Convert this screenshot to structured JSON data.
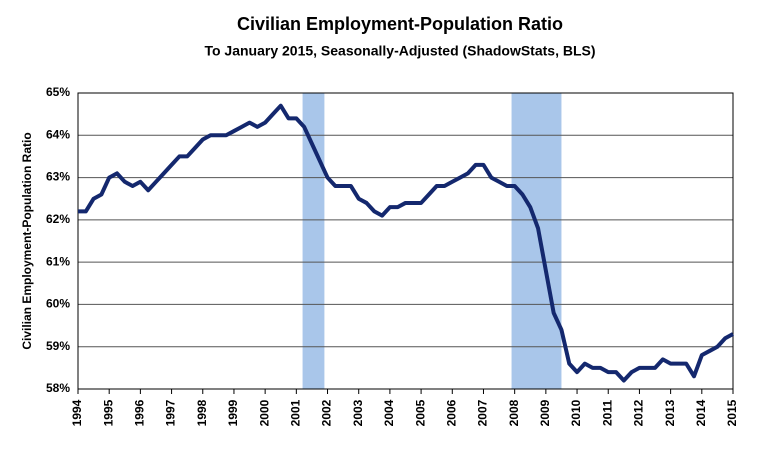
{
  "chart_data": {
    "type": "line",
    "title": "Civilian Employment-Population  Ratio",
    "subtitle": "To January 2015, Seasonally-Adjusted (ShadowStats, BLS)",
    "y_label": "Civilian Employment-Population  Ratio",
    "color": "#14286e",
    "shade_color": "#a9c6ea",
    "grid": true,
    "xlim": [
      1994,
      2015
    ],
    "xticks": [
      1994,
      1995,
      1996,
      1997,
      1998,
      1999,
      2000,
      2001,
      2002,
      2003,
      2004,
      2005,
      2006,
      2007,
      2008,
      2009,
      2010,
      2011,
      2012,
      2013,
      2014,
      2015
    ],
    "ylim": [
      58,
      65
    ],
    "yticks": [
      {
        "value": 58,
        "label": "58%"
      },
      {
        "value": 59,
        "label": "59%"
      },
      {
        "value": 60,
        "label": "60%"
      },
      {
        "value": 61,
        "label": "61%"
      },
      {
        "value": 62,
        "label": "62%"
      },
      {
        "value": 63,
        "label": "63%"
      },
      {
        "value": 64,
        "label": "64%"
      },
      {
        "value": 65,
        "label": "65%"
      }
    ],
    "shaded_regions": [
      [
        2001.2,
        2001.9
      ],
      [
        2007.9,
        2009.5
      ]
    ],
    "x": [
      1994.0,
      1994.25,
      1994.5,
      1994.75,
      1995.0,
      1995.25,
      1995.5,
      1995.75,
      1996.0,
      1996.25,
      1996.5,
      1996.75,
      1997.0,
      1997.25,
      1997.5,
      1997.75,
      1998.0,
      1998.25,
      1998.5,
      1998.75,
      1999.0,
      1999.25,
      1999.5,
      1999.75,
      2000.0,
      2000.25,
      2000.5,
      2000.75,
      2001.0,
      2001.25,
      2001.5,
      2001.75,
      2002.0,
      2002.25,
      2002.5,
      2002.75,
      2003.0,
      2003.25,
      2003.5,
      2003.75,
      2004.0,
      2004.25,
      2004.5,
      2004.75,
      2005.0,
      2005.25,
      2005.5,
      2005.75,
      2006.0,
      2006.25,
      2006.5,
      2006.75,
      2007.0,
      2007.25,
      2007.5,
      2007.75,
      2008.0,
      2008.25,
      2008.5,
      2008.75,
      2009.0,
      2009.25,
      2009.5,
      2009.75,
      2010.0,
      2010.25,
      2010.5,
      2010.75,
      2011.0,
      2011.25,
      2011.5,
      2011.75,
      2012.0,
      2012.25,
      2012.5,
      2012.75,
      2013.0,
      2013.25,
      2013.5,
      2013.75,
      2014.0,
      2014.25,
      2014.5,
      2014.75,
      2015.0
    ],
    "values": [
      62.2,
      62.2,
      62.5,
      62.6,
      63.0,
      63.1,
      62.9,
      62.8,
      62.9,
      62.7,
      62.9,
      63.1,
      63.3,
      63.5,
      63.5,
      63.7,
      63.9,
      64.0,
      64.0,
      64.0,
      64.1,
      64.2,
      64.3,
      64.2,
      64.3,
      64.5,
      64.7,
      64.4,
      64.4,
      64.2,
      63.8,
      63.4,
      63.0,
      62.8,
      62.8,
      62.8,
      62.5,
      62.4,
      62.2,
      62.1,
      62.3,
      62.3,
      62.4,
      62.4,
      62.4,
      62.6,
      62.8,
      62.8,
      62.9,
      63.0,
      63.1,
      63.3,
      63.3,
      63.0,
      62.9,
      62.8,
      62.8,
      62.6,
      62.3,
      61.8,
      60.8,
      59.8,
      59.4,
      58.6,
      58.4,
      58.6,
      58.5,
      58.5,
      58.4,
      58.4,
      58.2,
      58.4,
      58.5,
      58.5,
      58.5,
      58.7,
      58.6,
      58.6,
      58.6,
      58.3,
      58.8,
      58.9,
      59.0,
      59.2,
      59.3
    ]
  }
}
